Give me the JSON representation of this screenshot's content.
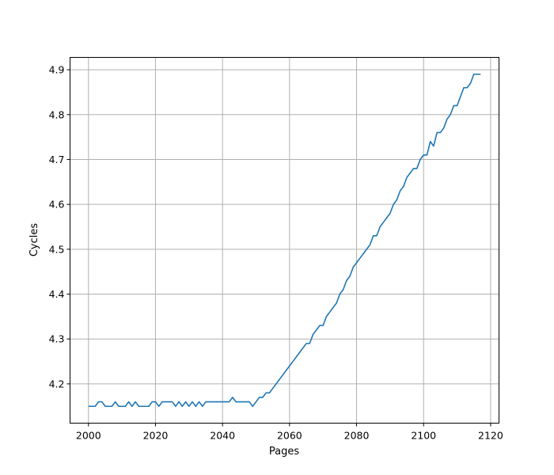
{
  "chart_data": {
    "type": "line",
    "title": "",
    "xlabel": "Pages",
    "ylabel": "Cycles",
    "xlim": [
      1994.5,
      2122.5
    ],
    "ylim": [
      4.1125,
      4.9275
    ],
    "xticks": [
      2000,
      2020,
      2040,
      2060,
      2080,
      2100,
      2120
    ],
    "yticks": [
      4.2,
      4.3,
      4.4,
      4.5,
      4.6,
      4.7,
      4.8,
      4.9
    ],
    "grid": true,
    "series": [
      {
        "color": "#1f77b4",
        "x": [
          2000,
          2001,
          2002,
          2003,
          2004,
          2005,
          2006,
          2007,
          2008,
          2009,
          2010,
          2011,
          2012,
          2013,
          2014,
          2015,
          2016,
          2017,
          2018,
          2019,
          2020,
          2021,
          2022,
          2023,
          2024,
          2025,
          2026,
          2027,
          2028,
          2029,
          2030,
          2031,
          2032,
          2033,
          2034,
          2035,
          2036,
          2037,
          2038,
          2039,
          2040,
          2041,
          2042,
          2043,
          2044,
          2045,
          2046,
          2047,
          2048,
          2049,
          2050,
          2051,
          2052,
          2053,
          2054,
          2055,
          2056,
          2057,
          2058,
          2059,
          2060,
          2061,
          2062,
          2063,
          2064,
          2065,
          2066,
          2067,
          2068,
          2069,
          2070,
          2071,
          2072,
          2073,
          2074,
          2075,
          2076,
          2077,
          2078,
          2079,
          2080,
          2081,
          2082,
          2083,
          2084,
          2085,
          2086,
          2087,
          2088,
          2089,
          2090,
          2091,
          2092,
          2093,
          2094,
          2095,
          2096,
          2097,
          2098,
          2099,
          2100,
          2101,
          2102,
          2103,
          2104,
          2105,
          2106,
          2107,
          2108,
          2109,
          2110,
          2111,
          2112,
          2113,
          2114,
          2115,
          2116,
          2117
        ],
        "y": [
          4.15,
          4.15,
          4.15,
          4.16,
          4.16,
          4.15,
          4.15,
          4.15,
          4.16,
          4.15,
          4.15,
          4.15,
          4.16,
          4.15,
          4.16,
          4.15,
          4.15,
          4.15,
          4.15,
          4.16,
          4.16,
          4.15,
          4.16,
          4.16,
          4.16,
          4.16,
          4.15,
          4.16,
          4.15,
          4.16,
          4.15,
          4.16,
          4.15,
          4.16,
          4.15,
          4.16,
          4.16,
          4.16,
          4.16,
          4.16,
          4.16,
          4.16,
          4.16,
          4.17,
          4.16,
          4.16,
          4.16,
          4.16,
          4.16,
          4.15,
          4.16,
          4.17,
          4.17,
          4.18,
          4.18,
          4.19,
          4.2,
          4.21,
          4.22,
          4.23,
          4.24,
          4.25,
          4.26,
          4.27,
          4.28,
          4.29,
          4.29,
          4.31,
          4.32,
          4.33,
          4.33,
          4.35,
          4.36,
          4.37,
          4.38,
          4.4,
          4.41,
          4.43,
          4.44,
          4.46,
          4.47,
          4.48,
          4.49,
          4.5,
          4.51,
          4.53,
          4.53,
          4.55,
          4.56,
          4.57,
          4.58,
          4.6,
          4.61,
          4.63,
          4.64,
          4.66,
          4.67,
          4.68,
          4.68,
          4.7,
          4.71,
          4.71,
          4.74,
          4.73,
          4.76,
          4.76,
          4.77,
          4.79,
          4.8,
          4.82,
          4.82,
          4.84,
          4.86,
          4.86,
          4.87,
          4.89,
          4.89,
          4.89
        ]
      }
    ]
  }
}
